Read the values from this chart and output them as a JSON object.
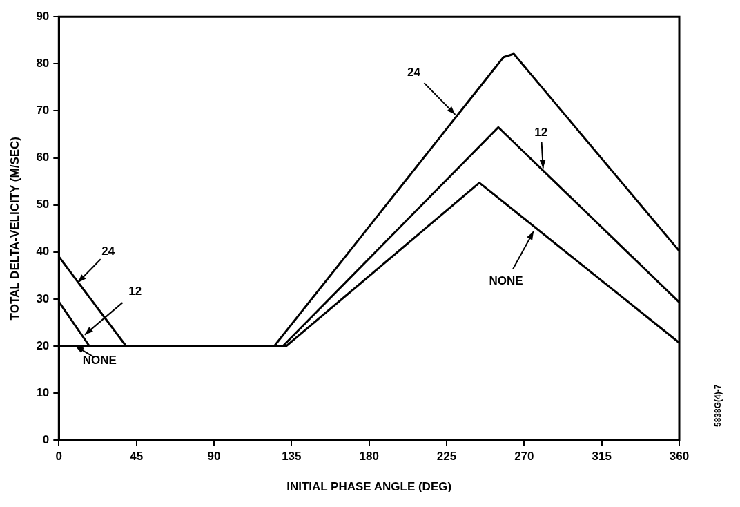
{
  "chart_data": {
    "type": "line",
    "xlabel": "INITIAL PHASE ANGLE (DEG)",
    "ylabel": "TOTAL DELTA-VELICITY (M/SEC)",
    "xlim": [
      0,
      360
    ],
    "xticks": [
      0,
      45,
      90,
      135,
      180,
      225,
      270,
      315,
      360
    ],
    "ylim": [
      0,
      90
    ],
    "yticks": [
      0,
      10,
      20,
      30,
      40,
      50,
      60,
      70,
      80,
      90
    ],
    "grid": false,
    "legend": false,
    "marker": "none",
    "line_style": "solid",
    "series": [
      {
        "color": "#000000",
        "x": [
          0,
          39,
          125,
          258,
          264,
          360
        ],
        "values": [
          39,
          20,
          20,
          81.4,
          82.1,
          40.2
        ]
      },
      {
        "color": "#000000",
        "x": [
          0,
          17.7,
          130,
          255,
          360
        ],
        "values": [
          29.4,
          20,
          20,
          66.5,
          29.3
        ]
      },
      {
        "color": "#000000",
        "x": [
          0,
          132,
          244,
          360
        ],
        "values": [
          20,
          20,
          54.7,
          20.7
        ]
      }
    ],
    "annotations": [
      {
        "text": "24",
        "x": 11,
        "y": 33.5
      },
      {
        "text": "12",
        "x": 15,
        "y": 22.4
      },
      {
        "text": "NONE",
        "x": 9.6,
        "y": 20
      },
      {
        "text": "24",
        "x": 230,
        "y": 69.2
      },
      {
        "text": "12",
        "x": 281,
        "y": 57.8
      },
      {
        "text": "NONE",
        "x": 275.5,
        "y": 44.4
      },
      "5838G(4)-7"
    ]
  }
}
